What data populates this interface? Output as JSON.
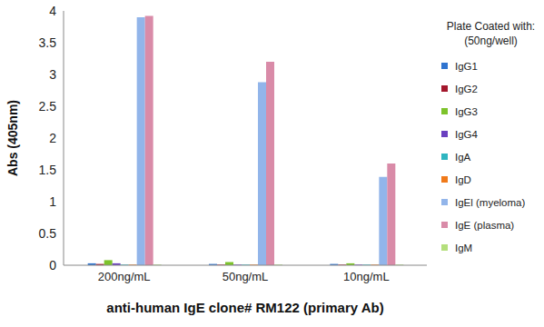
{
  "chart_data": {
    "type": "bar",
    "x_label": "anti-human IgE clone# RM122 (primary Ab)",
    "y_label": "Abs (405nm)",
    "legend_title": [
      "Plate Coated with:",
      "(50ng/well)"
    ],
    "categories": [
      "200ng/mL",
      "50ng/mL",
      "10ng/mL"
    ],
    "series": [
      {
        "name": "IgG1",
        "color": "#2f74d0",
        "values": [
          0.03,
          0.02,
          0.02
        ]
      },
      {
        "name": "IgG2",
        "color": "#a3172c",
        "values": [
          0.02,
          0.01,
          0.01
        ]
      },
      {
        "name": "IgG3",
        "color": "#7dc32b",
        "values": [
          0.08,
          0.05,
          0.03
        ]
      },
      {
        "name": "IgG4",
        "color": "#6a40c0",
        "values": [
          0.03,
          0.01,
          0.01
        ]
      },
      {
        "name": "IgA",
        "color": "#2fb5c0",
        "values": [
          0.01,
          0.01,
          0.01
        ]
      },
      {
        "name": "IgD",
        "color": "#f07a1a",
        "values": [
          0.01,
          0.01,
          0.01
        ]
      },
      {
        "name": "IgEl (myeloma)",
        "color": "#92b5ea",
        "values": [
          3.9,
          2.88,
          1.39
        ]
      },
      {
        "name": "IgE (plasma)",
        "color": "#d98ba8",
        "values": [
          3.92,
          3.2,
          1.6
        ]
      },
      {
        "name": "IgM",
        "color": "#b4df7c",
        "values": [
          0.01,
          0.01,
          0.01
        ]
      }
    ],
    "ylim": [
      0,
      4
    ],
    "yticks": [
      0,
      0.5,
      1,
      1.5,
      2,
      2.5,
      3,
      3.5,
      4
    ],
    "grid": false,
    "legend": "right"
  }
}
